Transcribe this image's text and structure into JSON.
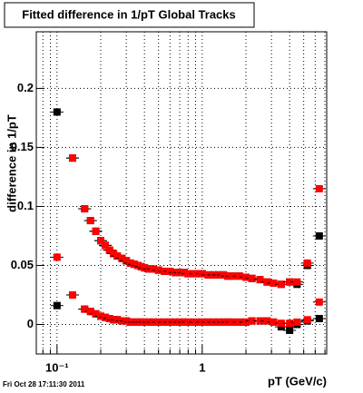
{
  "chart_data": {
    "type": "scatter",
    "title": "Fitted difference in 1/pT  Global Tracks",
    "x_label": "pT (GeV/c)",
    "y_label": "difference in 1/pT",
    "footer": "Fri Oct 28 17:11:30 2011",
    "log_x": true,
    "grid": true,
    "xlim": [
      0.072,
      7.2
    ],
    "ylim": [
      -0.025,
      0.248
    ],
    "xticks": [
      {
        "value": 0.1,
        "label": "10⁻¹"
      },
      1
    ],
    "xminor": [
      0.08,
      0.09,
      0.2,
      0.3,
      0.4,
      0.5,
      0.6,
      0.7,
      0.8,
      0.9,
      2,
      3,
      4,
      5,
      6,
      7
    ],
    "yticks": [
      0,
      0.05,
      0.1,
      0.15,
      0.2
    ],
    "x": [
      0.1,
      0.128,
      0.155,
      0.17,
      0.185,
      0.2,
      0.215,
      0.23,
      0.245,
      0.26,
      0.28,
      0.3,
      0.32,
      0.34,
      0.36,
      0.38,
      0.4,
      0.43,
      0.46,
      0.5,
      0.55,
      0.6,
      0.65,
      0.7,
      0.75,
      0.8,
      0.9,
      1.0,
      1.1,
      1.2,
      1.3,
      1.4,
      1.5,
      1.6,
      1.8,
      2.0,
      2.2,
      2.5,
      2.8,
      3.1,
      3.5,
      4.0,
      4.5,
      5.3,
      6.4
    ],
    "series": [
      {
        "color": "#000000",
        "values": [
          0.18,
          0.141,
          0.098,
          0.088,
          0.079,
          0.071,
          0.067,
          0.063,
          0.06,
          0.058,
          0.056,
          0.054,
          0.052,
          0.051,
          0.05,
          0.049,
          0.048,
          0.047,
          0.047,
          0.046,
          0.045,
          0.045,
          0.044,
          0.044,
          0.044,
          0.043,
          0.043,
          0.043,
          0.042,
          0.042,
          0.042,
          0.042,
          0.041,
          0.041,
          0.041,
          0.04,
          0.039,
          0.038,
          0.036,
          0.035,
          0.034,
          0.036,
          0.034,
          0.05,
          0.075
        ]
      },
      {
        "color": "#000000",
        "values": [
          0.016,
          0.025,
          0.013,
          0.011,
          0.009,
          0.007,
          0.006,
          0.005,
          0.004,
          0.004,
          0.003,
          0.003,
          0.002,
          0.002,
          0.002,
          0.002,
          0.002,
          0.002,
          0.002,
          0.002,
          0.002,
          0.002,
          0.002,
          0.002,
          0.002,
          0.002,
          0.002,
          0.002,
          0.002,
          0.002,
          0.002,
          0.002,
          0.002,
          0.002,
          0.002,
          0.002,
          0.003,
          0.003,
          0.003,
          0.002,
          -0.002,
          -0.005,
          0.0,
          0.003,
          0.005
        ]
      },
      {
        "color": "#ff0000",
        "values": [
          0.057,
          0.141,
          0.098,
          0.088,
          0.079,
          0.071,
          0.067,
          0.063,
          0.06,
          0.058,
          0.056,
          0.054,
          0.052,
          0.051,
          0.05,
          0.049,
          0.048,
          0.047,
          0.047,
          0.046,
          0.045,
          0.045,
          0.044,
          0.044,
          0.044,
          0.043,
          0.043,
          0.043,
          0.042,
          0.042,
          0.042,
          0.042,
          0.041,
          0.041,
          0.041,
          0.04,
          0.039,
          0.038,
          0.036,
          0.035,
          0.034,
          0.036,
          0.036,
          0.052,
          0.115
        ]
      },
      {
        "color": "#ff0000",
        "values": [
          null,
          0.025,
          0.013,
          0.011,
          0.009,
          0.007,
          0.006,
          0.005,
          0.004,
          0.004,
          0.003,
          0.003,
          0.002,
          0.002,
          0.002,
          0.002,
          0.002,
          0.002,
          0.002,
          0.002,
          0.002,
          0.002,
          0.002,
          0.002,
          0.002,
          0.002,
          0.002,
          0.002,
          0.002,
          0.002,
          0.002,
          0.002,
          0.002,
          0.002,
          0.002,
          0.002,
          0.003,
          0.003,
          0.003,
          0.002,
          0.001,
          0.001,
          0.002,
          0.004,
          0.019
        ]
      }
    ]
  }
}
